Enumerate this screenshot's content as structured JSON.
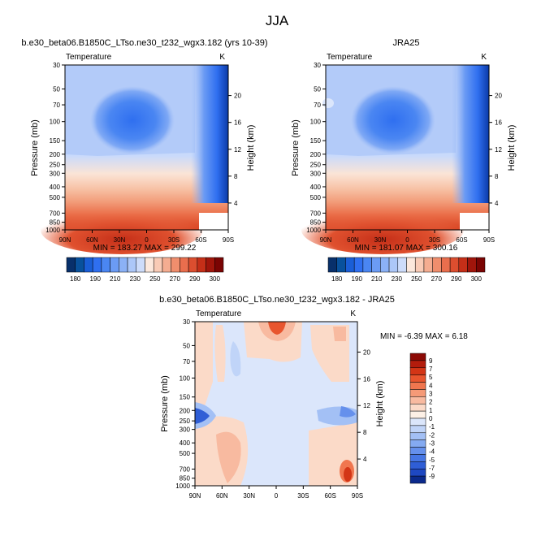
{
  "figure": {
    "title": "JJA"
  },
  "chart_data": [
    {
      "type": "heatmap",
      "title": "b.e30_beta06.B1850C_LTso.ne30_t232_wgx3.182 (yrs 10-39)",
      "subtitle_left": "Temperature",
      "subtitle_right": "K",
      "xlabel": "",
      "ylabel": "Pressure (mb)",
      "y2label": "Height (km)",
      "xticks": [
        "90N",
        "60N",
        "30N",
        "0",
        "30S",
        "60S",
        "90S"
      ],
      "yticks": [
        30,
        50,
        70,
        100,
        150,
        200,
        250,
        300,
        400,
        500,
        700,
        850,
        1000
      ],
      "y2ticks": [
        4,
        8,
        12,
        16,
        20
      ],
      "ylim": [
        1000,
        30
      ],
      "xlim": [
        90,
        -90
      ],
      "stats_text": "MIN = 183.27   MAX = 299.22",
      "min": 183.27,
      "max": 299.22
    },
    {
      "type": "heatmap",
      "title": "JRA25",
      "subtitle_left": "Temperature",
      "subtitle_right": "K",
      "xlabel": "",
      "ylabel": "Pressure (mb)",
      "y2label": "Height (km)",
      "xticks": [
        "90N",
        "60N",
        "30N",
        "0",
        "30S",
        "60S",
        "90S"
      ],
      "yticks": [
        30,
        50,
        70,
        100,
        150,
        200,
        250,
        300,
        400,
        500,
        700,
        850,
        1000
      ],
      "y2ticks": [
        4,
        8,
        12,
        16,
        20
      ],
      "ylim": [
        1000,
        30
      ],
      "xlim": [
        90,
        -90
      ],
      "stats_text": "MIN = 181.07   MAX = 300.16",
      "min": 181.07,
      "max": 300.16
    },
    {
      "type": "heatmap",
      "title": "b.e30_beta06.B1850C_LTso.ne30_t232_wgx3.182 - JRA25",
      "subtitle_left": "Temperature",
      "subtitle_right": "K",
      "xlabel": "",
      "ylabel": "Pressure (mb)",
      "y2label": "Height (km)",
      "xticks": [
        "90N",
        "60N",
        "30N",
        "0",
        "30S",
        "60S",
        "90S"
      ],
      "yticks": [
        30,
        50,
        70,
        100,
        150,
        200,
        250,
        300,
        400,
        500,
        700,
        850,
        1000
      ],
      "y2ticks": [
        4,
        8,
        12,
        16,
        20
      ],
      "ylim": [
        1000,
        30
      ],
      "xlim": [
        90,
        -90
      ],
      "stats_text": "MIN = -6.39   MAX =  6.18",
      "min": -6.39,
      "max": 6.18
    }
  ],
  "colorbar_abs": {
    "labels": [
      "180",
      "190",
      "210",
      "230",
      "250",
      "270",
      "290",
      "300"
    ],
    "colors": [
      "#08306b",
      "#08519c",
      "#1a5ed6",
      "#2f6ff0",
      "#4a86f2",
      "#6b9bf4",
      "#8bb1f6",
      "#acc7f8",
      "#cddcfa",
      "#fce8dc",
      "#f9cbb6",
      "#f5ad91",
      "#f08e6d",
      "#e96e4d",
      "#dc4e2f",
      "#c52f18",
      "#a0150b",
      "#7a0403"
    ]
  },
  "colorbar_diff": {
    "labels": [
      "9",
      "7",
      "5",
      "4",
      "3",
      "2",
      "1",
      "0",
      "-1",
      "-2",
      "-3",
      "-4",
      "-5",
      "-7",
      "-9"
    ],
    "colors": [
      "#8c0a05",
      "#b31c0c",
      "#d33516",
      "#e8552e",
      "#f0764f",
      "#f59a77",
      "#f8baa0",
      "#fbdac8",
      "#fdf0e6",
      "#dbe6fb",
      "#c0d4f8",
      "#a3c0f5",
      "#84aaf1",
      "#6590ec",
      "#4676e4",
      "#2f5ed6",
      "#1e48c2",
      "#0b2a8c"
    ]
  }
}
